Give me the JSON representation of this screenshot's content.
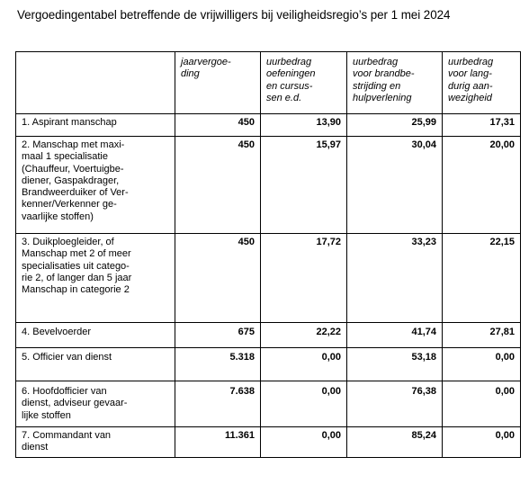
{
  "title": "Vergoedingentabel betreffende de vrijwilligers bij veiligheidsregio’s per 1 mei 2024",
  "table": {
    "headers": [
      "",
      "jaarvergoe-\nding",
      "uurbedrag\noefeningen\nen cursus-\nsen e.d.",
      "uurbedrag\nvoor brandbe-\nstrijding en\nhulpverlening",
      "uurbedrag\nvoor lang-\ndurig aan-\nwezigheid"
    ],
    "rows": [
      {
        "label": "1. Aspirant manschap",
        "jaarvergoeding": "450",
        "oefeningen": "13,90",
        "brandbestrijding": "25,99",
        "langdurig": "17,31"
      },
      {
        "label": "2. Manschap met maxi-\nmaal 1 specialisatie\n(Chauffeur, Voertuigbe-\ndiener, Gaspakdrager,\nBrandweerduiker of Ver-\nkenner/Verkenner ge-\nvaarlijke stoffen)",
        "jaarvergoeding": "450",
        "oefeningen": "15,97",
        "brandbestrijding": "30,04",
        "langdurig": "20,00"
      },
      {
        "label": "3. Duikploegleider, of\nManschap met 2 of meer\nspecialisaties uit catego-\nrie 2, of langer dan 5 jaar\nManschap in categorie 2",
        "jaarvergoeding": "450",
        "oefeningen": "17,72",
        "brandbestrijding": "33,23",
        "langdurig": "22,15"
      },
      {
        "label": "4. Bevelvoerder",
        "jaarvergoeding": "675",
        "oefeningen": "22,22",
        "brandbestrijding": "41,74",
        "langdurig": "27,81"
      },
      {
        "label": "5. Officier van dienst",
        "jaarvergoeding": "5.318",
        "oefeningen": "0,00",
        "brandbestrijding": "53,18",
        "langdurig": "0,00"
      },
      {
        "label": "6. Hoofdofficier van\ndienst, adviseur gevaar-\nlijke stoffen",
        "jaarvergoeding": "7.638",
        "oefeningen": "0,00",
        "brandbestrijding": "76,38",
        "langdurig": "0,00"
      },
      {
        "label": "7. Commandant van\ndienst",
        "jaarvergoeding": "11.361",
        "oefeningen": "0,00",
        "brandbestrijding": "85,24",
        "langdurig": "0,00"
      }
    ]
  }
}
